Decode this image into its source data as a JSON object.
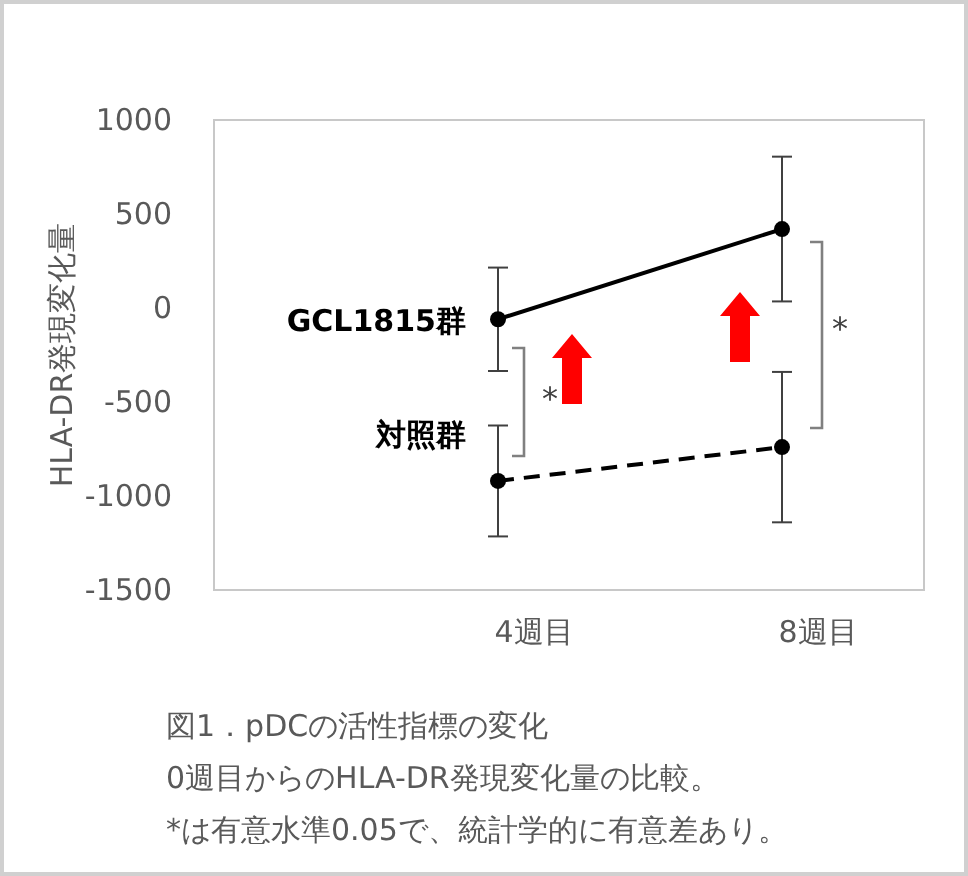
{
  "chart_data": {
    "type": "line",
    "ylabel": "HLA-DR発現変化量",
    "categories": [
      "4週目",
      "8週目"
    ],
    "series": [
      {
        "name": "GCL1815群",
        "color": "#000000",
        "line_style": "solid",
        "values": [
          -60,
          420
        ],
        "errors": [
          275,
          385
        ]
      },
      {
        "name": "対照群",
        "color": "#000000",
        "line_style": "dashed",
        "values": [
          -920,
          -740
        ],
        "errors": [
          295,
          400
        ]
      }
    ],
    "ylim": [
      -1500,
      1000
    ],
    "yticks": [
      -1500,
      -1000,
      -500,
      0,
      500,
      1000
    ],
    "marker": "circle",
    "grid": false,
    "annotations": [
      "*",
      "*",
      "図1．pDCの活性指標の変化",
      "0週目からのHLA-DR発現変化量の比較。",
      "*は有意水準0.05で、統計学的に有意差あり。"
    ]
  }
}
